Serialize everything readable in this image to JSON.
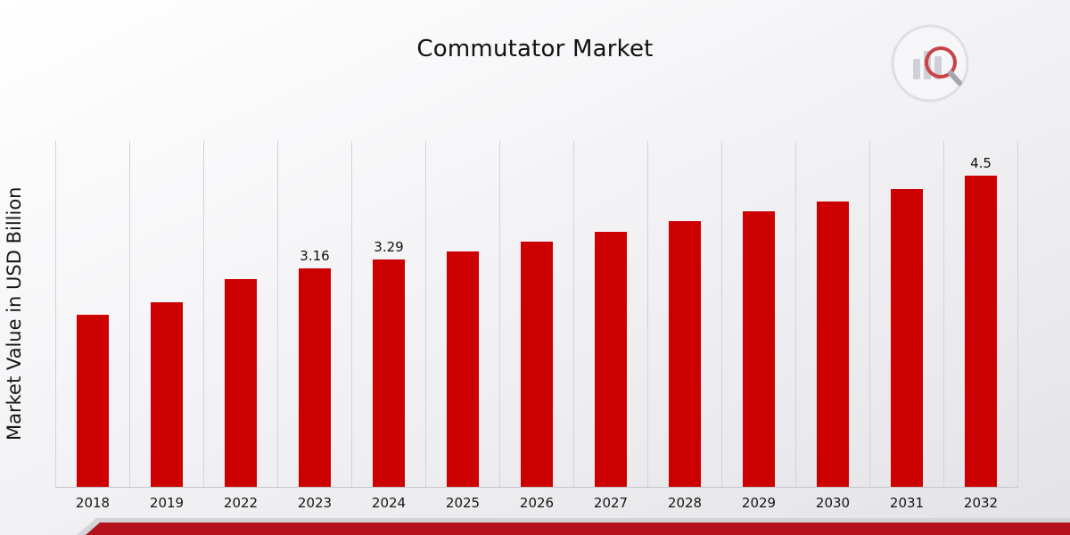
{
  "header": {
    "title": "Commutator Market",
    "logo": "market-research-future-logo"
  },
  "colors": {
    "bar": "#CC0001",
    "footer_stripe": "#B3111B",
    "gridline": "#D4D4D8"
  },
  "chart_data": {
    "type": "bar",
    "title": "Commutator Market",
    "xlabel": "",
    "ylabel": "Market Value in USD Billion",
    "categories": [
      "2018",
      "2019",
      "2022",
      "2023",
      "2024",
      "2025",
      "2026",
      "2027",
      "2028",
      "2029",
      "2030",
      "2031",
      "2032"
    ],
    "values": [
      2.49,
      2.67,
      3.0,
      3.16,
      3.29,
      3.4,
      3.55,
      3.68,
      3.84,
      3.98,
      4.13,
      4.31,
      4.5
    ],
    "labels": [
      "",
      "",
      "",
      "3.16",
      "3.29",
      "",
      "",
      "",
      "",
      "",
      "",
      "",
      "4.5"
    ],
    "bar_color": "#CC0001",
    "ylim": [
      0,
      5
    ],
    "grid": "vertical",
    "legend": "none"
  }
}
